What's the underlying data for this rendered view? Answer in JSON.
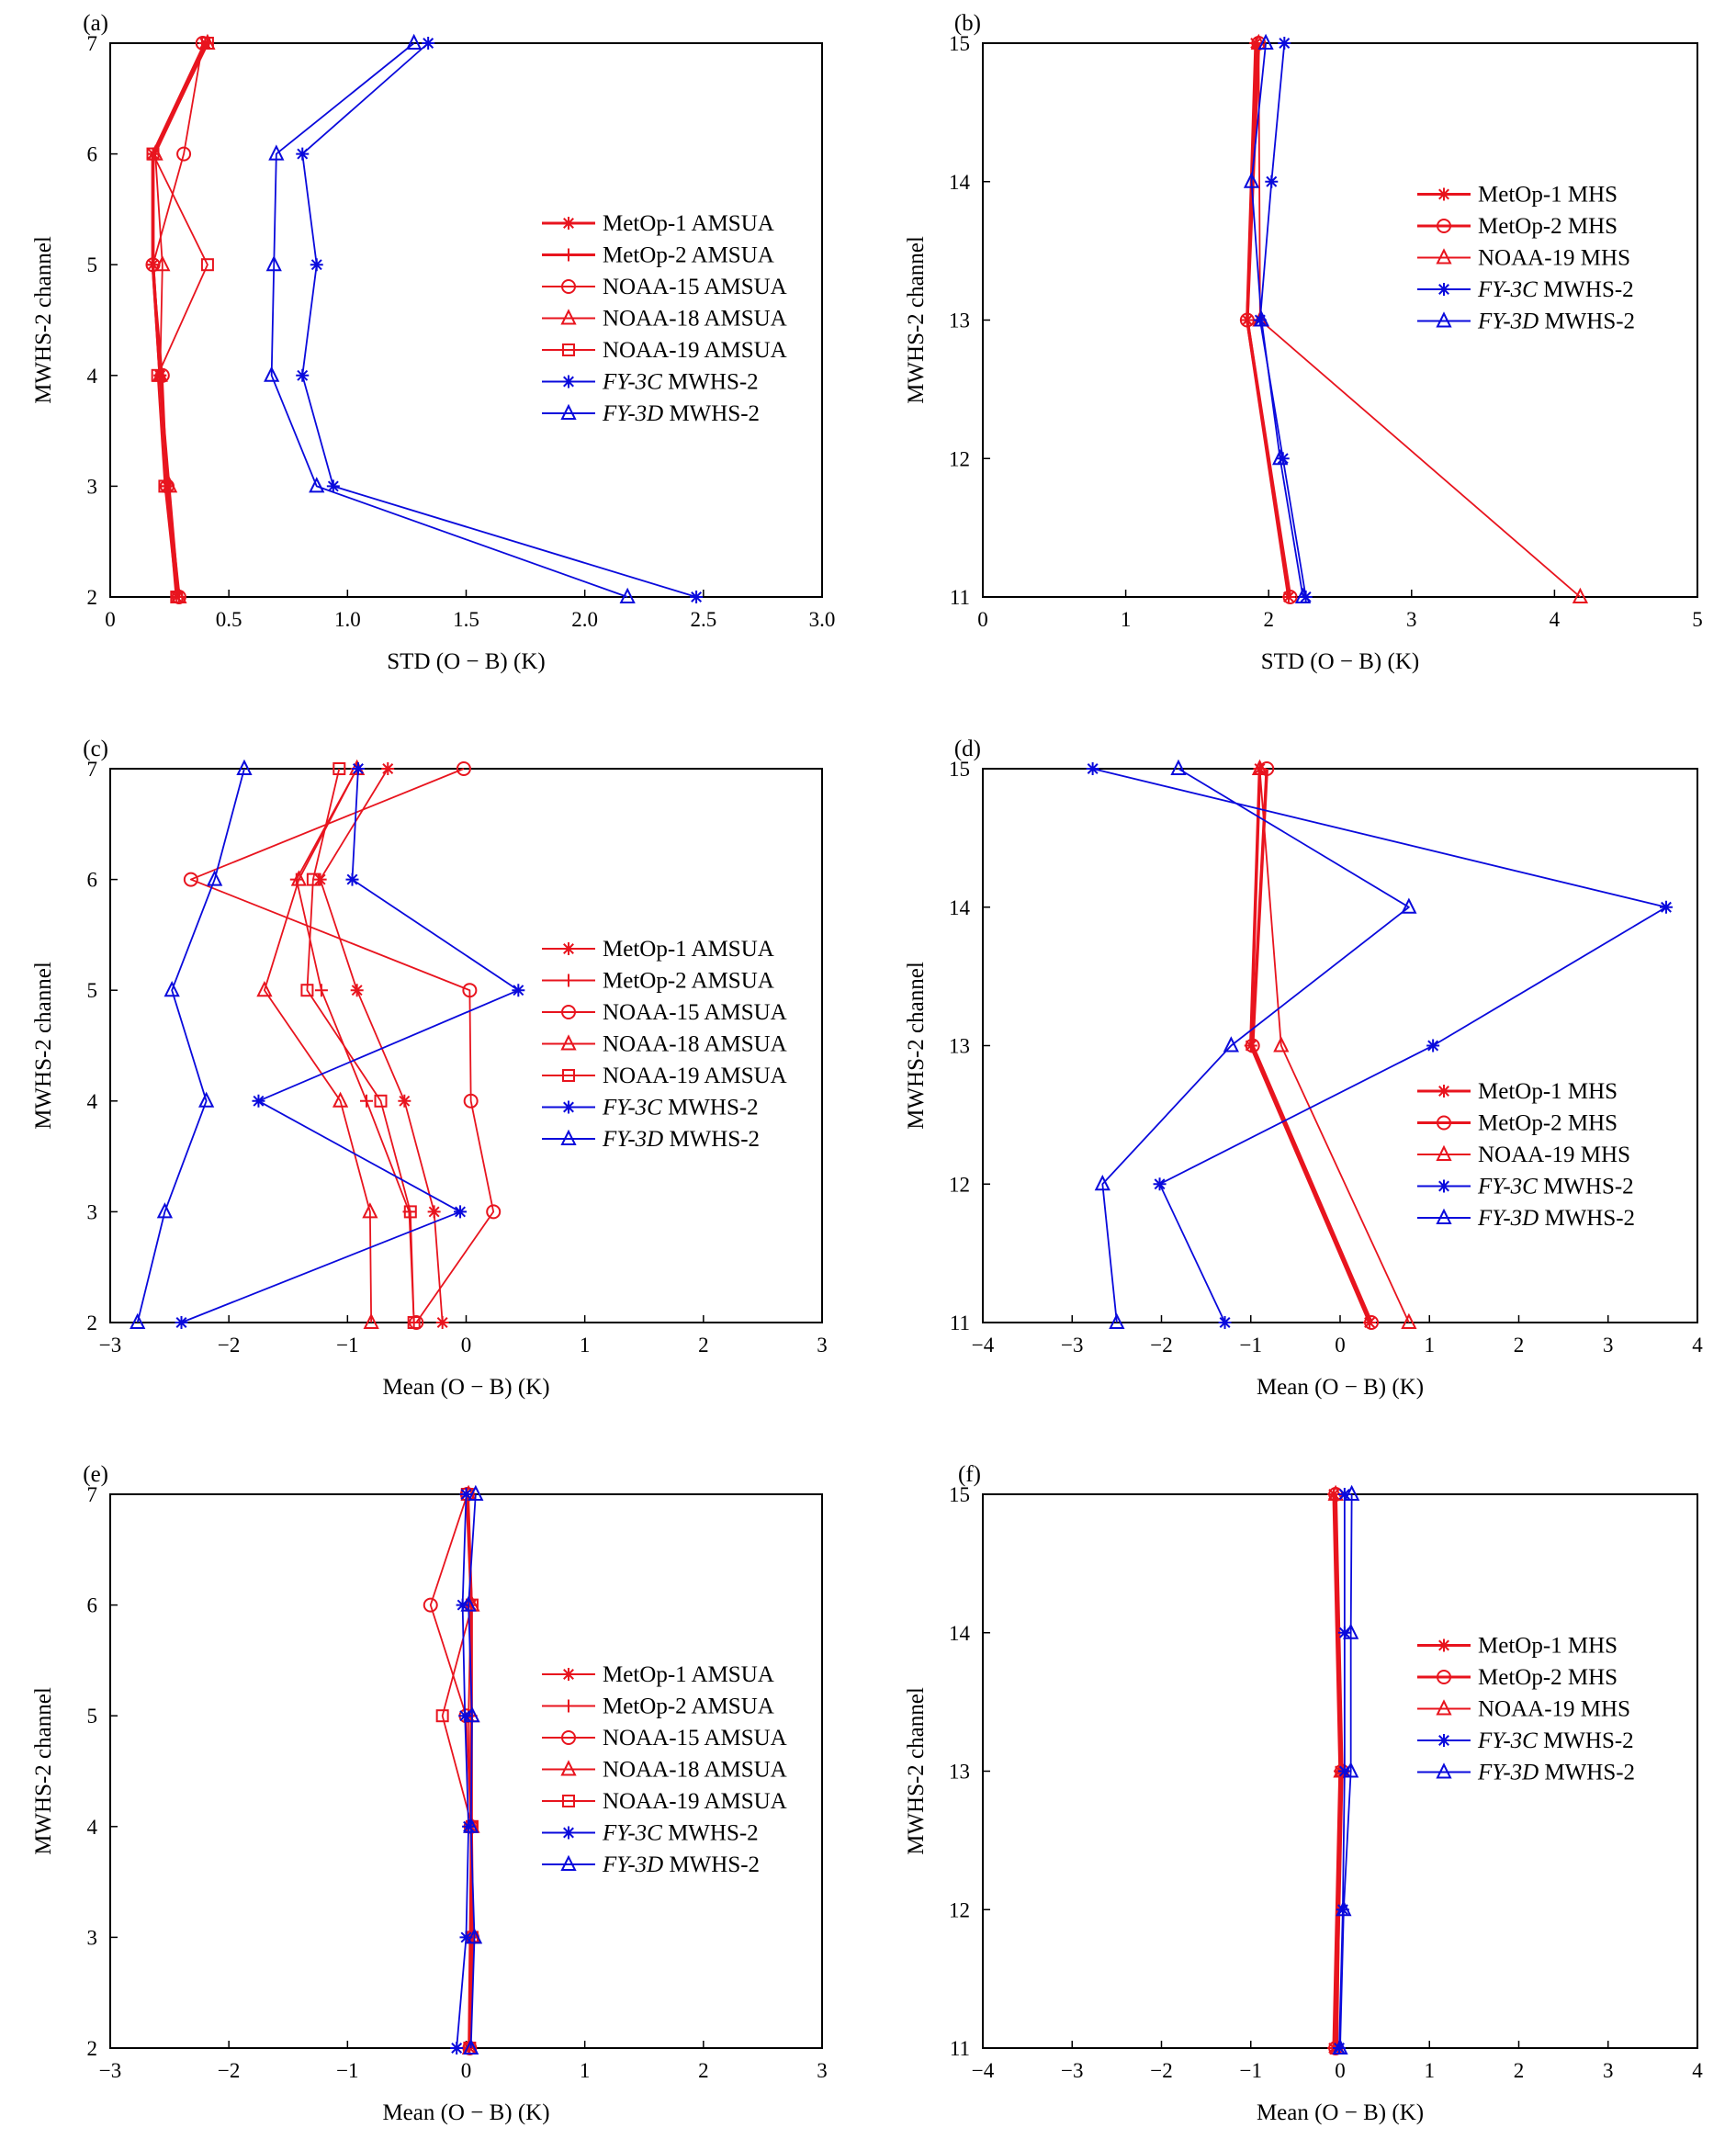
{
  "colors": {
    "red": "#e8141e",
    "blue": "#0a0adc",
    "axis": "#000000"
  },
  "chart_data": [
    {
      "panel": "(a)",
      "type": "line",
      "xlabel": "STD (O − B) (K)",
      "ylabel": "MWHS-2 channel",
      "xlim": [
        0,
        3
      ],
      "ylim": [
        2,
        7
      ],
      "xticks": [
        "0",
        "0.5",
        "1.0",
        "1.5",
        "2.0",
        "2.5",
        "3.0"
      ],
      "yticks": [
        "2",
        "3",
        "4",
        "5",
        "6",
        "7"
      ],
      "legend": {
        "placement": "center-right"
      },
      "y": [
        2,
        3,
        4,
        5,
        6,
        7
      ],
      "series": [
        {
          "name": "MetOp-1 AMSUA",
          "name_prefix": "",
          "name_italic": "",
          "name_suffix": "MetOp-1 AMSUA",
          "color": "red",
          "marker": "star",
          "thick": true,
          "x": [
            0.28,
            0.24,
            0.21,
            0.18,
            0.18,
            0.4
          ]
        },
        {
          "name": "MetOp-2 AMSUA",
          "name_prefix": "",
          "name_italic": "",
          "name_suffix": "MetOp-2 AMSUA",
          "color": "red",
          "marker": "plus",
          "thick": true,
          "x": [
            0.29,
            0.24,
            0.21,
            0.18,
            0.18,
            0.41
          ]
        },
        {
          "name": "NOAA-15 AMSUA",
          "name_prefix": "",
          "name_italic": "",
          "name_suffix": "NOAA-15 AMSUA",
          "color": "red",
          "marker": "circle",
          "thick": false,
          "x": [
            0.29,
            0.24,
            0.22,
            0.18,
            0.31,
            0.39
          ]
        },
        {
          "name": "NOAA-18 AMSUA",
          "name_prefix": "",
          "name_italic": "",
          "name_suffix": "NOAA-18 AMSUA",
          "color": "red",
          "marker": "triangle",
          "thick": false,
          "x": [
            0.29,
            0.25,
            0.21,
            0.22,
            0.19,
            0.41
          ]
        },
        {
          "name": "NOAA-19 AMSUA",
          "name_prefix": "",
          "name_italic": "",
          "name_suffix": "NOAA-19 AMSUA",
          "color": "red",
          "marker": "square",
          "thick": false,
          "x": [
            0.28,
            0.23,
            0.2,
            0.41,
            0.18,
            0.41
          ]
        },
        {
          "name": "FY-3C MWHS-2",
          "name_prefix": "",
          "name_italic": "FY-3C",
          "name_suffix": " MWHS-2",
          "color": "blue",
          "marker": "star",
          "thick": false,
          "x": [
            2.47,
            0.94,
            0.81,
            0.87,
            0.81,
            1.34
          ]
        },
        {
          "name": "FY-3D MWHS-2",
          "name_prefix": "",
          "name_italic": "FY-3D",
          "name_suffix": " MWHS-2",
          "color": "blue",
          "marker": "triangle",
          "thick": false,
          "x": [
            2.18,
            0.87,
            0.68,
            0.69,
            0.7,
            1.28
          ]
        }
      ]
    },
    {
      "panel": "(b)",
      "type": "line",
      "xlabel": "STD (O − B) (K)",
      "ylabel": "MWHS-2 channel",
      "xlim": [
        0,
        5
      ],
      "ylim": [
        11,
        15
      ],
      "xticks": [
        "0",
        "1",
        "2",
        "3",
        "4",
        "5"
      ],
      "yticks": [
        "11",
        "12",
        "13",
        "14",
        "15"
      ],
      "legend": {
        "placement": "center-right"
      },
      "y": [
        11,
        13,
        15
      ],
      "series": [
        {
          "name": "MetOp-1 MHS",
          "name_prefix": "",
          "name_italic": "",
          "name_suffix": "MetOp-1 MHS",
          "color": "red",
          "marker": "star",
          "thick": true,
          "x": [
            2.14,
            1.85,
            1.91
          ]
        },
        {
          "name": "MetOp-2 MHS",
          "name_prefix": "",
          "name_italic": "",
          "name_suffix": "MetOp-2 MHS",
          "color": "red",
          "marker": "circle",
          "thick": true,
          "x": [
            2.15,
            1.85,
            1.93
          ]
        },
        {
          "name": "NOAA-19 MHS",
          "name_prefix": "",
          "name_italic": "",
          "name_suffix": "NOAA-19 MHS",
          "color": "red",
          "marker": "triangle",
          "thick": false,
          "x": [
            4.18,
            1.94,
            1.93
          ]
        },
        {
          "name": "FY-3C MWHS-2",
          "name_prefix": "",
          "name_italic": "FY-3C",
          "name_suffix": " MWHS-2",
          "color": "blue",
          "marker": "star",
          "thick": false,
          "y": [
            11,
            12,
            13,
            14,
            15
          ],
          "x": [
            2.26,
            2.1,
            1.94,
            2.02,
            2.11
          ]
        },
        {
          "name": "FY-3D MWHS-2",
          "name_prefix": "",
          "name_italic": "FY-3D",
          "name_suffix": " MWHS-2",
          "color": "blue",
          "marker": "triangle",
          "thick": false,
          "y": [
            11,
            12,
            13,
            14,
            15
          ],
          "x": [
            2.24,
            2.08,
            1.95,
            1.88,
            1.98
          ]
        }
      ]
    },
    {
      "panel": "(c)",
      "type": "line",
      "xlabel": "Mean (O − B) (K)",
      "ylabel": "MWHS-2 channel",
      "xlim": [
        -3,
        3
      ],
      "ylim": [
        2,
        7
      ],
      "xticks": [
        "−3",
        "−2",
        "−1",
        "0",
        "1",
        "2",
        "3"
      ],
      "yticks": [
        "2",
        "3",
        "4",
        "5",
        "6",
        "7"
      ],
      "legend": {
        "placement": "center-right"
      },
      "y": [
        2,
        3,
        4,
        5,
        6,
        7
      ],
      "series": [
        {
          "name": "MetOp-1 AMSUA",
          "name_prefix": "",
          "name_italic": "",
          "name_suffix": "MetOp-1 AMSUA",
          "color": "red",
          "marker": "star",
          "thick": false,
          "x": [
            -0.2,
            -0.27,
            -0.52,
            -0.92,
            -1.23,
            -0.66
          ]
        },
        {
          "name": "MetOp-2 AMSUA",
          "name_prefix": "",
          "name_italic": "",
          "name_suffix": "MetOp-2 AMSUA",
          "color": "red",
          "marker": "plus",
          "thick": false,
          "x": [
            -0.44,
            -0.48,
            -0.84,
            -1.22,
            -1.43,
            -0.92
          ]
        },
        {
          "name": "NOAA-15 AMSUA",
          "name_prefix": "",
          "name_italic": "",
          "name_suffix": "NOAA-15 AMSUA",
          "color": "red",
          "marker": "circle",
          "thick": false,
          "x": [
            -0.42,
            0.23,
            0.04,
            0.03,
            -2.32,
            -0.02
          ]
        },
        {
          "name": "NOAA-18 AMSUA",
          "name_prefix": "",
          "name_italic": "",
          "name_suffix": "NOAA-18 AMSUA",
          "color": "red",
          "marker": "triangle",
          "thick": false,
          "x": [
            -0.8,
            -0.81,
            -1.06,
            -1.7,
            -1.41,
            -0.92
          ]
        },
        {
          "name": "NOAA-19 AMSUA",
          "name_prefix": "",
          "name_italic": "",
          "name_suffix": "NOAA-19 AMSUA",
          "color": "red",
          "marker": "square",
          "thick": false,
          "x": [
            -0.44,
            -0.47,
            -0.72,
            -1.34,
            -1.29,
            -1.07
          ]
        },
        {
          "name": "FY-3C MWHS-2",
          "name_prefix": "",
          "name_italic": "FY-3C",
          "name_suffix": " MWHS-2",
          "color": "blue",
          "marker": "star",
          "thick": false,
          "x": [
            -2.4,
            -0.05,
            -1.75,
            0.44,
            -0.96,
            -0.91
          ]
        },
        {
          "name": "FY-3D MWHS-2",
          "name_prefix": "",
          "name_italic": "FY-3D",
          "name_suffix": " MWHS-2",
          "color": "blue",
          "marker": "triangle",
          "thick": false,
          "x": [
            -2.77,
            -2.54,
            -2.19,
            -2.48,
            -2.12,
            -1.87
          ]
        }
      ]
    },
    {
      "panel": "(d)",
      "type": "line",
      "xlabel": "Mean (O − B) (K)",
      "ylabel": "MWHS-2 channel",
      "xlim": [
        -4,
        4
      ],
      "ylim": [
        11,
        15
      ],
      "xticks": [
        "−4",
        "−3",
        "−2",
        "−1",
        "0",
        "1",
        "2",
        "3",
        "4"
      ],
      "yticks": [
        "11",
        "12",
        "13",
        "14",
        "15"
      ],
      "legend": {
        "placement": "lower-right"
      },
      "y": [
        11,
        13,
        15
      ],
      "series": [
        {
          "name": "MetOp-1 MHS",
          "name_prefix": "",
          "name_italic": "",
          "name_suffix": "MetOp-1 MHS",
          "color": "red",
          "marker": "star",
          "thick": true,
          "x": [
            0.33,
            -1.0,
            -0.9
          ]
        },
        {
          "name": "MetOp-2 MHS",
          "name_prefix": "",
          "name_italic": "",
          "name_suffix": "MetOp-2 MHS",
          "color": "red",
          "marker": "circle",
          "thick": true,
          "x": [
            0.35,
            -0.98,
            -0.82
          ]
        },
        {
          "name": "NOAA-19 MHS",
          "name_prefix": "",
          "name_italic": "",
          "name_suffix": "NOAA-19 MHS",
          "color": "red",
          "marker": "triangle",
          "thick": false,
          "x": [
            0.77,
            -0.66,
            -0.9
          ]
        },
        {
          "name": "FY-3C MWHS-2",
          "name_prefix": "",
          "name_italic": "FY-3C",
          "name_suffix": " MWHS-2",
          "color": "blue",
          "marker": "star",
          "thick": false,
          "y": [
            11,
            12,
            13,
            14,
            15
          ],
          "x": [
            -1.29,
            -2.02,
            1.04,
            3.65,
            -2.77
          ]
        },
        {
          "name": "FY-3D MWHS-2",
          "name_prefix": "",
          "name_italic": "FY-3D",
          "name_suffix": " MWHS-2",
          "color": "blue",
          "marker": "triangle",
          "thick": false,
          "y": [
            11,
            12,
            13,
            14,
            15
          ],
          "x": [
            -2.5,
            -2.66,
            -1.22,
            0.77,
            -1.81
          ]
        }
      ]
    },
    {
      "panel": "(e)",
      "type": "line",
      "xlabel": "Mean (O − B) (K)",
      "ylabel": "MWHS-2 channel",
      "xlim": [
        -3,
        3
      ],
      "ylim": [
        2,
        7
      ],
      "xticks": [
        "−3",
        "−2",
        "−1",
        "0",
        "1",
        "2",
        "3"
      ],
      "yticks": [
        "2",
        "3",
        "4",
        "5",
        "6",
        "7"
      ],
      "legend": {
        "placement": "center-right"
      },
      "y": [
        2,
        3,
        4,
        5,
        6,
        7
      ],
      "series": [
        {
          "name": "MetOp-1 AMSUA",
          "name_prefix": "",
          "name_italic": "",
          "name_suffix": "MetOp-1 AMSUA",
          "color": "red",
          "marker": "star",
          "thick": false,
          "x": [
            0.03,
            0.04,
            0.04,
            0.02,
            0.04,
            0.0
          ]
        },
        {
          "name": "MetOp-2 AMSUA",
          "name_prefix": "",
          "name_italic": "",
          "name_suffix": "MetOp-2 AMSUA",
          "color": "red",
          "marker": "plus",
          "thick": false,
          "x": [
            0.02,
            0.03,
            0.04,
            0.04,
            0.04,
            0.01
          ]
        },
        {
          "name": "NOAA-15 AMSUA",
          "name_prefix": "",
          "name_italic": "",
          "name_suffix": "NOAA-15 AMSUA",
          "color": "red",
          "marker": "circle",
          "thick": false,
          "x": [
            0.03,
            0.05,
            0.04,
            0.0,
            -0.3,
            0.01
          ]
        },
        {
          "name": "NOAA-18 AMSUA",
          "name_prefix": "",
          "name_italic": "",
          "name_suffix": "NOAA-18 AMSUA",
          "color": "red",
          "marker": "triangle",
          "thick": false,
          "x": [
            0.03,
            0.06,
            0.05,
            0.05,
            0.05,
            0.02
          ]
        },
        {
          "name": "NOAA-19 AMSUA",
          "name_prefix": "",
          "name_italic": "",
          "name_suffix": "NOAA-19 AMSUA",
          "color": "red",
          "marker": "square",
          "thick": false,
          "x": [
            0.03,
            0.05,
            0.05,
            -0.2,
            0.05,
            0.01
          ]
        },
        {
          "name": "FY-3C MWHS-2",
          "name_prefix": "",
          "name_italic": "FY-3C",
          "name_suffix": " MWHS-2",
          "color": "blue",
          "marker": "star",
          "thick": false,
          "x": [
            -0.08,
            0.0,
            0.02,
            -0.01,
            -0.03,
            0.0
          ]
        },
        {
          "name": "FY-3D MWHS-2",
          "name_prefix": "",
          "name_italic": "FY-3D",
          "name_suffix": " MWHS-2",
          "color": "blue",
          "marker": "triangle",
          "thick": false,
          "x": [
            0.04,
            0.07,
            0.04,
            0.05,
            0.02,
            0.08
          ]
        }
      ]
    },
    {
      "panel": "(f)",
      "type": "line",
      "xlabel": "Mean (O − B) (K)",
      "ylabel": "MWHS-2 channel",
      "xlim": [
        -4,
        4
      ],
      "ylim": [
        11,
        15
      ],
      "xticks": [
        "−4",
        "−3",
        "−2",
        "−1",
        "0",
        "1",
        "2",
        "3",
        "4"
      ],
      "yticks": [
        "11",
        "12",
        "13",
        "14",
        "15"
      ],
      "legend": {
        "placement": "center-right"
      },
      "y": [
        11,
        13,
        15
      ],
      "series": [
        {
          "name": "MetOp-1 MHS",
          "name_prefix": "",
          "name_italic": "",
          "name_suffix": "MetOp-1 MHS",
          "color": "red",
          "marker": "star",
          "thick": true,
          "x": [
            -0.07,
            0.0,
            -0.07
          ]
        },
        {
          "name": "MetOp-2 MHS",
          "name_prefix": "",
          "name_italic": "",
          "name_suffix": "MetOp-2 MHS",
          "color": "red",
          "marker": "circle",
          "thick": true,
          "x": [
            -0.05,
            0.02,
            -0.05
          ]
        },
        {
          "name": "NOAA-19 MHS",
          "name_prefix": "",
          "name_italic": "",
          "name_suffix": "NOAA-19 MHS",
          "color": "red",
          "marker": "triangle",
          "thick": false,
          "x": [
            -0.03,
            0.01,
            -0.05
          ]
        },
        {
          "name": "FY-3C MWHS-2",
          "name_prefix": "",
          "name_italic": "FY-3C",
          "name_suffix": " MWHS-2",
          "color": "blue",
          "marker": "star",
          "thick": false,
          "y": [
            11,
            12,
            13,
            14,
            15
          ],
          "x": [
            -0.01,
            0.03,
            0.05,
            0.05,
            0.05
          ]
        },
        {
          "name": "FY-3D MWHS-2",
          "name_prefix": "",
          "name_italic": "FY-3D",
          "name_suffix": " MWHS-2",
          "color": "blue",
          "marker": "triangle",
          "thick": false,
          "y": [
            11,
            12,
            13,
            14,
            15
          ],
          "x": [
            0.0,
            0.04,
            0.12,
            0.12,
            0.13
          ]
        }
      ]
    }
  ]
}
